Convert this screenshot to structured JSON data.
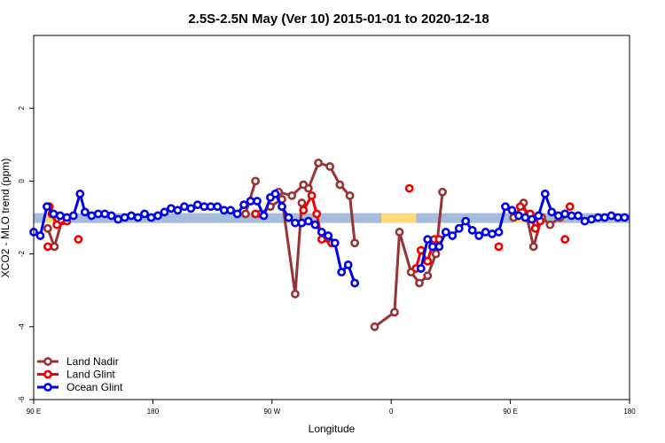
{
  "chart_data": {
    "type": "line",
    "title": "2.5S-2.5N May (Ver 10)   2015-01-01 to 2020-12-18",
    "xlabel": "Longitude",
    "ylabel": "XCO2 - MLO trend (ppm)",
    "xlim": [
      90,
      450
    ],
    "ylim": [
      -6,
      4
    ],
    "x_ticks": [
      {
        "value": 90,
        "label": "90 E"
      },
      {
        "value": 162,
        "label": "180"
      },
      {
        "value": 234,
        "label": "90 W"
      },
      {
        "value": 306,
        "label": "0"
      },
      {
        "value": 378,
        "label": "90 E"
      },
      {
        "value": 450,
        "label": "180"
      }
    ],
    "y_ticks": [
      -6,
      -4,
      -2,
      0,
      2
    ],
    "legend_position": "bottom-left",
    "surface_bar": {
      "y_range": [
        -1.15,
        -0.88
      ],
      "segments": [
        {
          "x0": 90,
          "x1": 97,
          "type": "ocean"
        },
        {
          "x0": 97,
          "x1": 102,
          "type": "land"
        },
        {
          "x0": 102,
          "x1": 300,
          "type": "ocean"
        },
        {
          "x0": 300,
          "x1": 313,
          "type": "land"
        },
        {
          "x0": 313,
          "x1": 321,
          "type": "land"
        },
        {
          "x0": 321,
          "x1": 380,
          "type": "ocean"
        },
        {
          "x0": 380,
          "x1": 387,
          "type": "land"
        },
        {
          "x0": 387,
          "x1": 450,
          "type": "ocean"
        }
      ],
      "colors": {
        "ocean": "#a6bcdd",
        "land": "#ffd97a"
      }
    },
    "series": [
      {
        "name": "Land Nadir",
        "color": "#993333",
        "segments": [
          [
            [
              98.5,
              -1.3
            ],
            [
              102.5,
              -1.8
            ],
            [
              107,
              -1.1
            ]
          ],
          [
            [
              227,
              -0.9
            ],
            [
              233,
              -0.7
            ],
            [
              240,
              -0.5
            ],
            [
              248,
              -3.1
            ],
            [
              252,
              -0.6
            ]
          ],
          [
            [
              238,
              -0.3
            ],
            [
              246,
              -0.4
            ],
            [
              253,
              -0.1
            ],
            [
              256,
              -0.2
            ],
            [
              262,
              0.5
            ],
            [
              269,
              0.4
            ],
            [
              275,
              -0.1
            ],
            [
              281,
              -0.4
            ],
            [
              284,
              -1.7
            ]
          ],
          [
            [
              218,
              -0.9
            ],
            [
              224,
              0.0
            ]
          ],
          [
            [
              296,
              -4.0
            ],
            [
              308,
              -3.6
            ],
            [
              311,
              -1.4
            ],
            [
              318,
              -2.5
            ],
            [
              323,
              -2.8
            ],
            [
              328,
              -2.6
            ],
            [
              333,
              -2.0
            ],
            [
              337,
              -0.3
            ]
          ],
          [
            [
              380,
              -1.0
            ],
            [
              386,
              -0.6
            ],
            [
              392,
              -1.8
            ],
            [
              397,
              -1.0
            ],
            [
              402,
              -1.2
            ],
            [
              408,
              -1.0
            ]
          ]
        ],
        "points": [
          [
            102.5,
            -1.8
          ],
          [
            98.5,
            -1.3
          ],
          [
            107,
            -1.1
          ],
          [
            227,
            -0.9
          ],
          [
            233,
            -0.7
          ],
          [
            240,
            -0.5
          ],
          [
            248,
            -3.1
          ],
          [
            224,
            0.0
          ],
          [
            262,
            0.5
          ],
          [
            269,
            0.4
          ],
          [
            275,
            -0.1
          ],
          [
            281,
            -0.4
          ],
          [
            284,
            -1.7
          ],
          [
            253,
            -0.1
          ],
          [
            296,
            -4.0
          ],
          [
            308,
            -3.6
          ],
          [
            311,
            -1.4
          ],
          [
            318,
            -2.5
          ],
          [
            323,
            -2.8
          ],
          [
            328,
            -2.6
          ],
          [
            333,
            -2.0
          ],
          [
            337,
            -0.3
          ],
          [
            386,
            -0.6
          ],
          [
            392,
            -1.8
          ],
          [
            397,
            -1.0
          ],
          [
            402,
            -1.2
          ]
        ]
      },
      {
        "name": "Land Glint",
        "color": "#ee0000",
        "segments": [
          [
            [
              99.5,
              -0.7
            ],
            [
              101,
              -0.9
            ],
            [
              104,
              -1.2
            ],
            [
              110,
              -1.1
            ]
          ],
          [
            [
              253,
              -0.8
            ],
            [
              258,
              -0.4
            ],
            [
              261,
              -0.9
            ],
            [
              264,
              -1.6
            ],
            [
              270,
              -1.7
            ]
          ],
          [
            [
              321,
              -2.4
            ],
            [
              324,
              -1.9
            ],
            [
              328,
              -2.2
            ],
            [
              332,
              -1.6
            ],
            [
              335,
              -1.6
            ]
          ],
          [
            [
              384,
              -0.7
            ],
            [
              390,
              -0.9
            ],
            [
              393,
              -1.3
            ],
            [
              396,
              -1.1
            ]
          ]
        ],
        "points": [
          [
            98.5,
            -1.8
          ],
          [
            99.5,
            -0.7
          ],
          [
            101,
            -0.9
          ],
          [
            104,
            -1.2
          ],
          [
            110,
            -1.1
          ],
          [
            117,
            -1.6
          ],
          [
            224,
            -0.9
          ],
          [
            253,
            -0.8
          ],
          [
            258,
            -0.4
          ],
          [
            261,
            -0.9
          ],
          [
            264,
            -1.6
          ],
          [
            317,
            -0.2
          ],
          [
            321,
            -2.4
          ],
          [
            324,
            -1.9
          ],
          [
            328,
            -2.2
          ],
          [
            332,
            -1.6
          ],
          [
            335,
            -1.6
          ],
          [
            371,
            -1.8
          ],
          [
            384,
            -0.7
          ],
          [
            390,
            -0.9
          ],
          [
            393,
            -1.3
          ],
          [
            396,
            -1.1
          ],
          [
            411,
            -1.6
          ],
          [
            414,
            -0.7
          ]
        ]
      },
      {
        "name": "Ocean Glint",
        "color": "#0000ee",
        "segments": [
          [
            [
              90,
              -1.4
            ],
            [
              94,
              -1.5
            ],
            [
              98,
              -0.7
            ],
            [
              102,
              -0.9
            ],
            [
              106,
              -0.95
            ],
            [
              110,
              -1.0
            ],
            [
              114,
              -0.95
            ],
            [
              118,
              -0.35
            ],
            [
              121,
              -0.85
            ],
            [
              125,
              -0.95
            ],
            [
              129,
              -0.9
            ],
            [
              133,
              -0.9
            ],
            [
              137,
              -0.95
            ],
            [
              141,
              -1.05
            ],
            [
              145,
              -1.0
            ],
            [
              149,
              -0.95
            ],
            [
              153,
              -1.0
            ],
            [
              157,
              -0.9
            ],
            [
              161,
              -1.0
            ],
            [
              165,
              -0.95
            ],
            [
              169,
              -0.85
            ],
            [
              173,
              -0.75
            ],
            [
              177,
              -0.8
            ],
            [
              181,
              -0.7
            ],
            [
              185,
              -0.75
            ],
            [
              189,
              -0.65
            ],
            [
              193,
              -0.7
            ],
            [
              197,
              -0.7
            ],
            [
              201,
              -0.7
            ],
            [
              205,
              -0.8
            ],
            [
              209,
              -0.8
            ],
            [
              213,
              -0.9
            ],
            [
              217,
              -0.65
            ],
            [
              221,
              -0.55
            ],
            [
              225,
              -0.55
            ],
            [
              229,
              -0.95
            ],
            [
              233,
              -0.45
            ],
            [
              236,
              -0.35
            ],
            [
              240,
              -0.7
            ],
            [
              244,
              -1.0
            ],
            [
              248,
              -1.15
            ],
            [
              252,
              -1.15
            ],
            [
              256,
              -1.1
            ],
            [
              260,
              -1.2
            ],
            [
              264,
              -1.4
            ],
            [
              268,
              -1.5
            ],
            [
              272,
              -1.7
            ],
            [
              276,
              -2.5
            ],
            [
              280,
              -2.3
            ],
            [
              284,
              -2.8
            ]
          ],
          [
            [
              324,
              -2.4
            ],
            [
              328,
              -1.6
            ],
            [
              331,
              -1.8
            ],
            [
              335,
              -1.8
            ],
            [
              339,
              -1.4
            ],
            [
              343,
              -1.5
            ],
            [
              347,
              -1.3
            ],
            [
              351,
              -1.1
            ],
            [
              355,
              -1.35
            ],
            [
              359,
              -1.5
            ],
            [
              363,
              -1.4
            ],
            [
              367,
              -1.45
            ],
            [
              371,
              -1.4
            ],
            [
              375,
              -0.7
            ],
            [
              379,
              -0.8
            ],
            [
              383,
              -0.95
            ],
            [
              387,
              -1.0
            ],
            [
              391,
              -1.05
            ],
            [
              395,
              -0.95
            ],
            [
              399,
              -0.35
            ],
            [
              403,
              -0.85
            ],
            [
              407,
              -0.95
            ],
            [
              411,
              -0.9
            ],
            [
              415,
              -0.95
            ],
            [
              419,
              -0.95
            ],
            [
              423,
              -1.1
            ],
            [
              427,
              -1.05
            ],
            [
              431,
              -1.0
            ],
            [
              435,
              -1.0
            ],
            [
              439,
              -0.95
            ],
            [
              443,
              -1.0
            ],
            [
              447,
              -1.0
            ]
          ]
        ],
        "points": []
      }
    ],
    "legend": [
      {
        "name": "Land Nadir",
        "color": "#993333"
      },
      {
        "name": "Land Glint",
        "color": "#ee0000"
      },
      {
        "name": "Ocean Glint",
        "color": "#0000ee"
      }
    ]
  }
}
